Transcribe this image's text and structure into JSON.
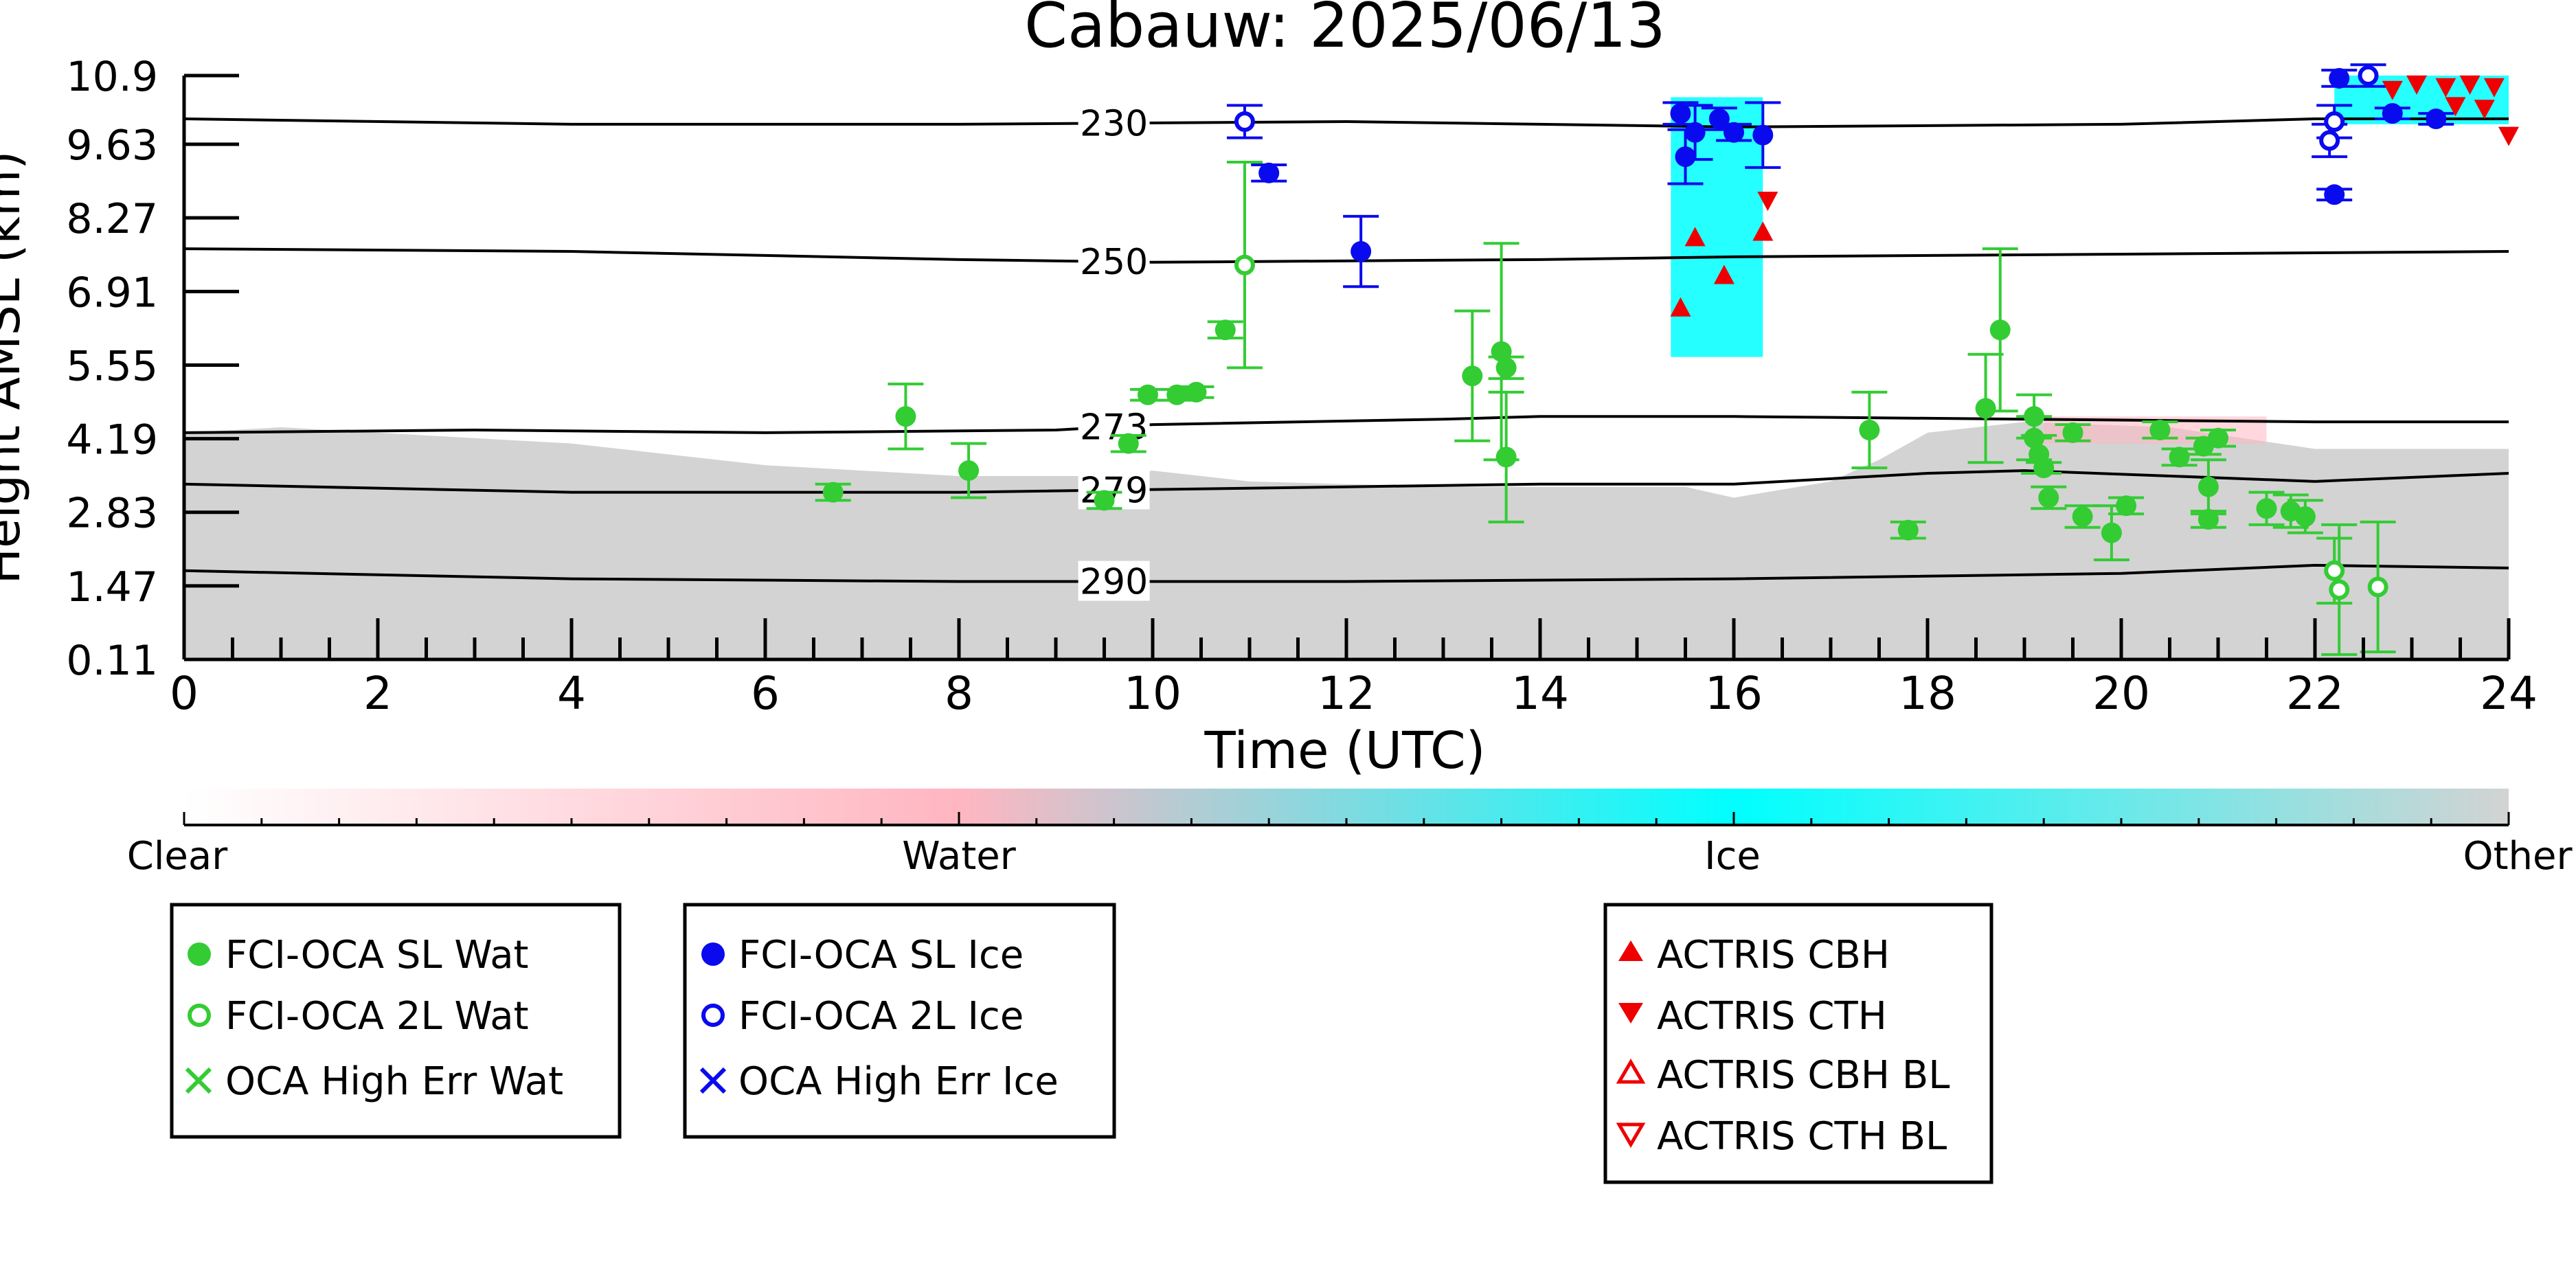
{
  "chart_data": {
    "type": "scatter",
    "title": "Cabauw: 2025/06/13",
    "xlabel": "Time (UTC)",
    "ylabel": "Height AMSL (km)",
    "xlim": [
      0,
      24
    ],
    "ylim": [
      0.11,
      10.9
    ],
    "xticks": [
      0,
      2,
      4,
      6,
      8,
      10,
      12,
      14,
      16,
      18,
      20,
      22,
      24
    ],
    "yticks": [
      0.11,
      1.47,
      2.83,
      4.19,
      5.55,
      6.91,
      8.27,
      9.63,
      10.9
    ],
    "ytick_labels": [
      "0.11",
      "1.47",
      "2.83",
      "4.19",
      "5.55",
      "6.91",
      "8.27",
      "9.63",
      "10.9"
    ],
    "colorbar": {
      "labels": [
        "Clear",
        "Water",
        "Ice",
        "Other"
      ],
      "colors": [
        "#ffffff",
        "#ffb6c1",
        "#00ffff",
        "#d3d3d3"
      ]
    },
    "contours": [
      {
        "label": "230",
        "label_x": 9.6,
        "points": [
          [
            0,
            10.1
          ],
          [
            4,
            10.0
          ],
          [
            8,
            10.0
          ],
          [
            12,
            10.05
          ],
          [
            16,
            9.95
          ],
          [
            20,
            10.0
          ],
          [
            22,
            10.1
          ],
          [
            24,
            10.1
          ]
        ]
      },
      {
        "label": "250",
        "label_x": 9.6,
        "points": [
          [
            0,
            7.7
          ],
          [
            4,
            7.65
          ],
          [
            8,
            7.5
          ],
          [
            10,
            7.45
          ],
          [
            14,
            7.5
          ],
          [
            16,
            7.55
          ],
          [
            20,
            7.6
          ],
          [
            24,
            7.65
          ]
        ]
      },
      {
        "label": "273",
        "label_x": 9.6,
        "points": [
          [
            0,
            4.3
          ],
          [
            3,
            4.35
          ],
          [
            6,
            4.3
          ],
          [
            9,
            4.35
          ],
          [
            10,
            4.45
          ],
          [
            13,
            4.55
          ],
          [
            14,
            4.6
          ],
          [
            16,
            4.6
          ],
          [
            19,
            4.55
          ],
          [
            22,
            4.5
          ],
          [
            24,
            4.5
          ]
        ]
      },
      {
        "label": "279",
        "label_x": 9.6,
        "points": [
          [
            0,
            3.35
          ],
          [
            4,
            3.2
          ],
          [
            8,
            3.2
          ],
          [
            12,
            3.3
          ],
          [
            14,
            3.35
          ],
          [
            16,
            3.35
          ],
          [
            18,
            3.55
          ],
          [
            19,
            3.6
          ],
          [
            22,
            3.4
          ],
          [
            24,
            3.55
          ]
        ]
      },
      {
        "label": "290",
        "label_x": 9.6,
        "points": [
          [
            0,
            1.75
          ],
          [
            4,
            1.6
          ],
          [
            8,
            1.55
          ],
          [
            12,
            1.55
          ],
          [
            16,
            1.6
          ],
          [
            20,
            1.7
          ],
          [
            22,
            1.85
          ],
          [
            24,
            1.8
          ]
        ]
      }
    ],
    "background_regions": [
      {
        "class": "Other",
        "points": [
          [
            0,
            0.11
          ],
          [
            0,
            4.3
          ],
          [
            1,
            4.4
          ],
          [
            2,
            4.3
          ],
          [
            4,
            4.1
          ],
          [
            6,
            3.7
          ],
          [
            8,
            3.5
          ],
          [
            9.5,
            3.5
          ],
          [
            10,
            3.6
          ],
          [
            11,
            3.4
          ],
          [
            13,
            3.3
          ],
          [
            15.5,
            3.3
          ],
          [
            16,
            3.1
          ],
          [
            17,
            3.4
          ],
          [
            17.5,
            3.8
          ],
          [
            18,
            4.3
          ],
          [
            19,
            4.5
          ],
          [
            20.5,
            4.4
          ],
          [
            22,
            4.0
          ],
          [
            24,
            4.0
          ],
          [
            24,
            0.11
          ]
        ]
      },
      {
        "class": "Water",
        "points": [
          [
            19.2,
            4.1
          ],
          [
            21.5,
            4.1
          ],
          [
            21.5,
            4.6
          ],
          [
            19.2,
            4.6
          ]
        ]
      }
    ],
    "ice_regions": [
      {
        "x0": 15.35,
        "x1": 16.3,
        "y0": 5.7,
        "y1": 10.5
      },
      {
        "x0": 22.2,
        "x1": 24.0,
        "y0": 10.0,
        "y1": 10.9
      }
    ],
    "series": [
      {
        "name": "FCI-OCA SL Wat",
        "color": "#33cc33",
        "marker": "filled-circle",
        "points": [
          [
            6.7,
            3.2,
            0.15
          ],
          [
            7.45,
            4.6,
            0.6
          ],
          [
            8.1,
            3.6,
            0.5
          ],
          [
            9.5,
            3.05,
            0.15
          ],
          [
            9.75,
            4.1,
            0.15
          ],
          [
            9.95,
            5.0,
            0.1
          ],
          [
            10.25,
            5.0,
            0.1
          ],
          [
            10.45,
            5.05,
            0.1
          ],
          [
            10.75,
            6.2,
            0.15
          ],
          [
            13.3,
            5.35,
            1.2
          ],
          [
            13.6,
            5.8,
            2.0
          ],
          [
            13.65,
            5.5,
            0.2
          ],
          [
            13.65,
            3.85,
            1.2
          ],
          [
            17.4,
            4.35,
            0.7
          ],
          [
            17.8,
            2.5,
            0.15
          ],
          [
            18.6,
            4.75,
            1.0
          ],
          [
            18.75,
            6.2,
            1.5
          ],
          [
            19.1,
            4.6,
            0.4
          ],
          [
            19.1,
            4.2,
            0.4
          ],
          [
            19.15,
            3.9,
            0.35
          ],
          [
            19.2,
            3.65,
            0.1
          ],
          [
            19.25,
            3.1,
            0.2
          ],
          [
            19.5,
            4.3,
            0.15
          ],
          [
            19.6,
            2.75,
            0.2
          ],
          [
            19.9,
            2.45,
            0.5
          ],
          [
            20.05,
            2.95,
            0.15
          ],
          [
            20.4,
            4.35,
            0.15
          ],
          [
            20.6,
            3.85,
            0.15
          ],
          [
            20.85,
            4.05,
            0.15
          ],
          [
            20.9,
            3.3,
            0.5
          ],
          [
            20.9,
            2.7,
            0.15
          ],
          [
            21.0,
            4.2,
            0.15
          ],
          [
            21.5,
            2.9,
            0.3
          ],
          [
            21.75,
            2.85,
            0.3
          ],
          [
            21.9,
            2.75,
            0.3
          ]
        ]
      },
      {
        "name": "FCI-OCA 2L Wat",
        "color": "#33cc33",
        "marker": "open-circle",
        "points": [
          [
            10.95,
            7.4,
            1.9
          ],
          [
            22.2,
            1.75,
            0.6
          ],
          [
            22.25,
            1.4,
            1.2
          ],
          [
            22.65,
            1.45,
            1.2
          ]
        ]
      },
      {
        "name": "OCA High Err Wat",
        "color": "#33cc33",
        "marker": "x",
        "points": []
      },
      {
        "name": "FCI-OCA SL Ice",
        "color": "#0a0aee",
        "marker": "filled-circle",
        "points": [
          [
            11.2,
            9.1,
            0.15
          ],
          [
            12.15,
            7.65,
            0.65
          ],
          [
            15.45,
            10.2,
            0.2
          ],
          [
            15.5,
            9.4,
            0.5
          ],
          [
            15.6,
            9.85,
            0.5
          ],
          [
            15.85,
            10.1,
            0.2
          ],
          [
            16.0,
            9.85,
            0.15
          ],
          [
            16.3,
            9.8,
            0.6
          ],
          [
            22.2,
            8.7,
            0.1
          ],
          [
            22.25,
            10.85,
            0.15
          ],
          [
            22.8,
            10.2,
            0.1
          ],
          [
            23.25,
            10.1,
            0.1
          ]
        ]
      },
      {
        "name": "FCI-OCA 2L Ice",
        "color": "#0a0aee",
        "marker": "open-circle",
        "points": [
          [
            10.95,
            10.05,
            0.3
          ],
          [
            22.15,
            9.7,
            0.3
          ],
          [
            22.2,
            10.05,
            0.3
          ],
          [
            22.55,
            10.9,
            0.2
          ]
        ]
      },
      {
        "name": "OCA High Err Ice",
        "color": "#0a0aee",
        "marker": "x",
        "points": []
      },
      {
        "name": "ACTRIS CBH",
        "color": "#ee0000",
        "marker": "triangle-up",
        "points": [
          [
            15.45,
            6.6
          ],
          [
            15.6,
            7.9
          ],
          [
            15.9,
            7.2
          ],
          [
            16.3,
            8.0
          ]
        ]
      },
      {
        "name": "ACTRIS CTH",
        "color": "#ee0000",
        "marker": "triangle-down",
        "points": [
          [
            16.35,
            8.6
          ],
          [
            22.8,
            10.65
          ],
          [
            23.05,
            10.75
          ],
          [
            23.35,
            10.7
          ],
          [
            23.6,
            10.75
          ],
          [
            23.85,
            10.7
          ],
          [
            23.45,
            10.35
          ],
          [
            23.75,
            10.3
          ],
          [
            24.0,
            9.8
          ]
        ]
      },
      {
        "name": "ACTRIS CBH BL",
        "color": "#ee0000",
        "marker": "open-triangle-up",
        "points": []
      },
      {
        "name": "ACTRIS CTH BL",
        "color": "#ee0000",
        "marker": "open-triangle-down",
        "points": []
      }
    ],
    "legend_groups": [
      [
        "FCI-OCA SL Wat",
        "FCI-OCA 2L Wat",
        "OCA High Err Wat"
      ],
      [
        "FCI-OCA SL Ice",
        "FCI-OCA 2L Ice",
        "OCA High Err Ice"
      ],
      [
        "ACTRIS CBH",
        "ACTRIS CTH",
        "ACTRIS CBH BL",
        "ACTRIS CTH BL"
      ]
    ],
    "legend_placement": "below",
    "grid": false
  }
}
